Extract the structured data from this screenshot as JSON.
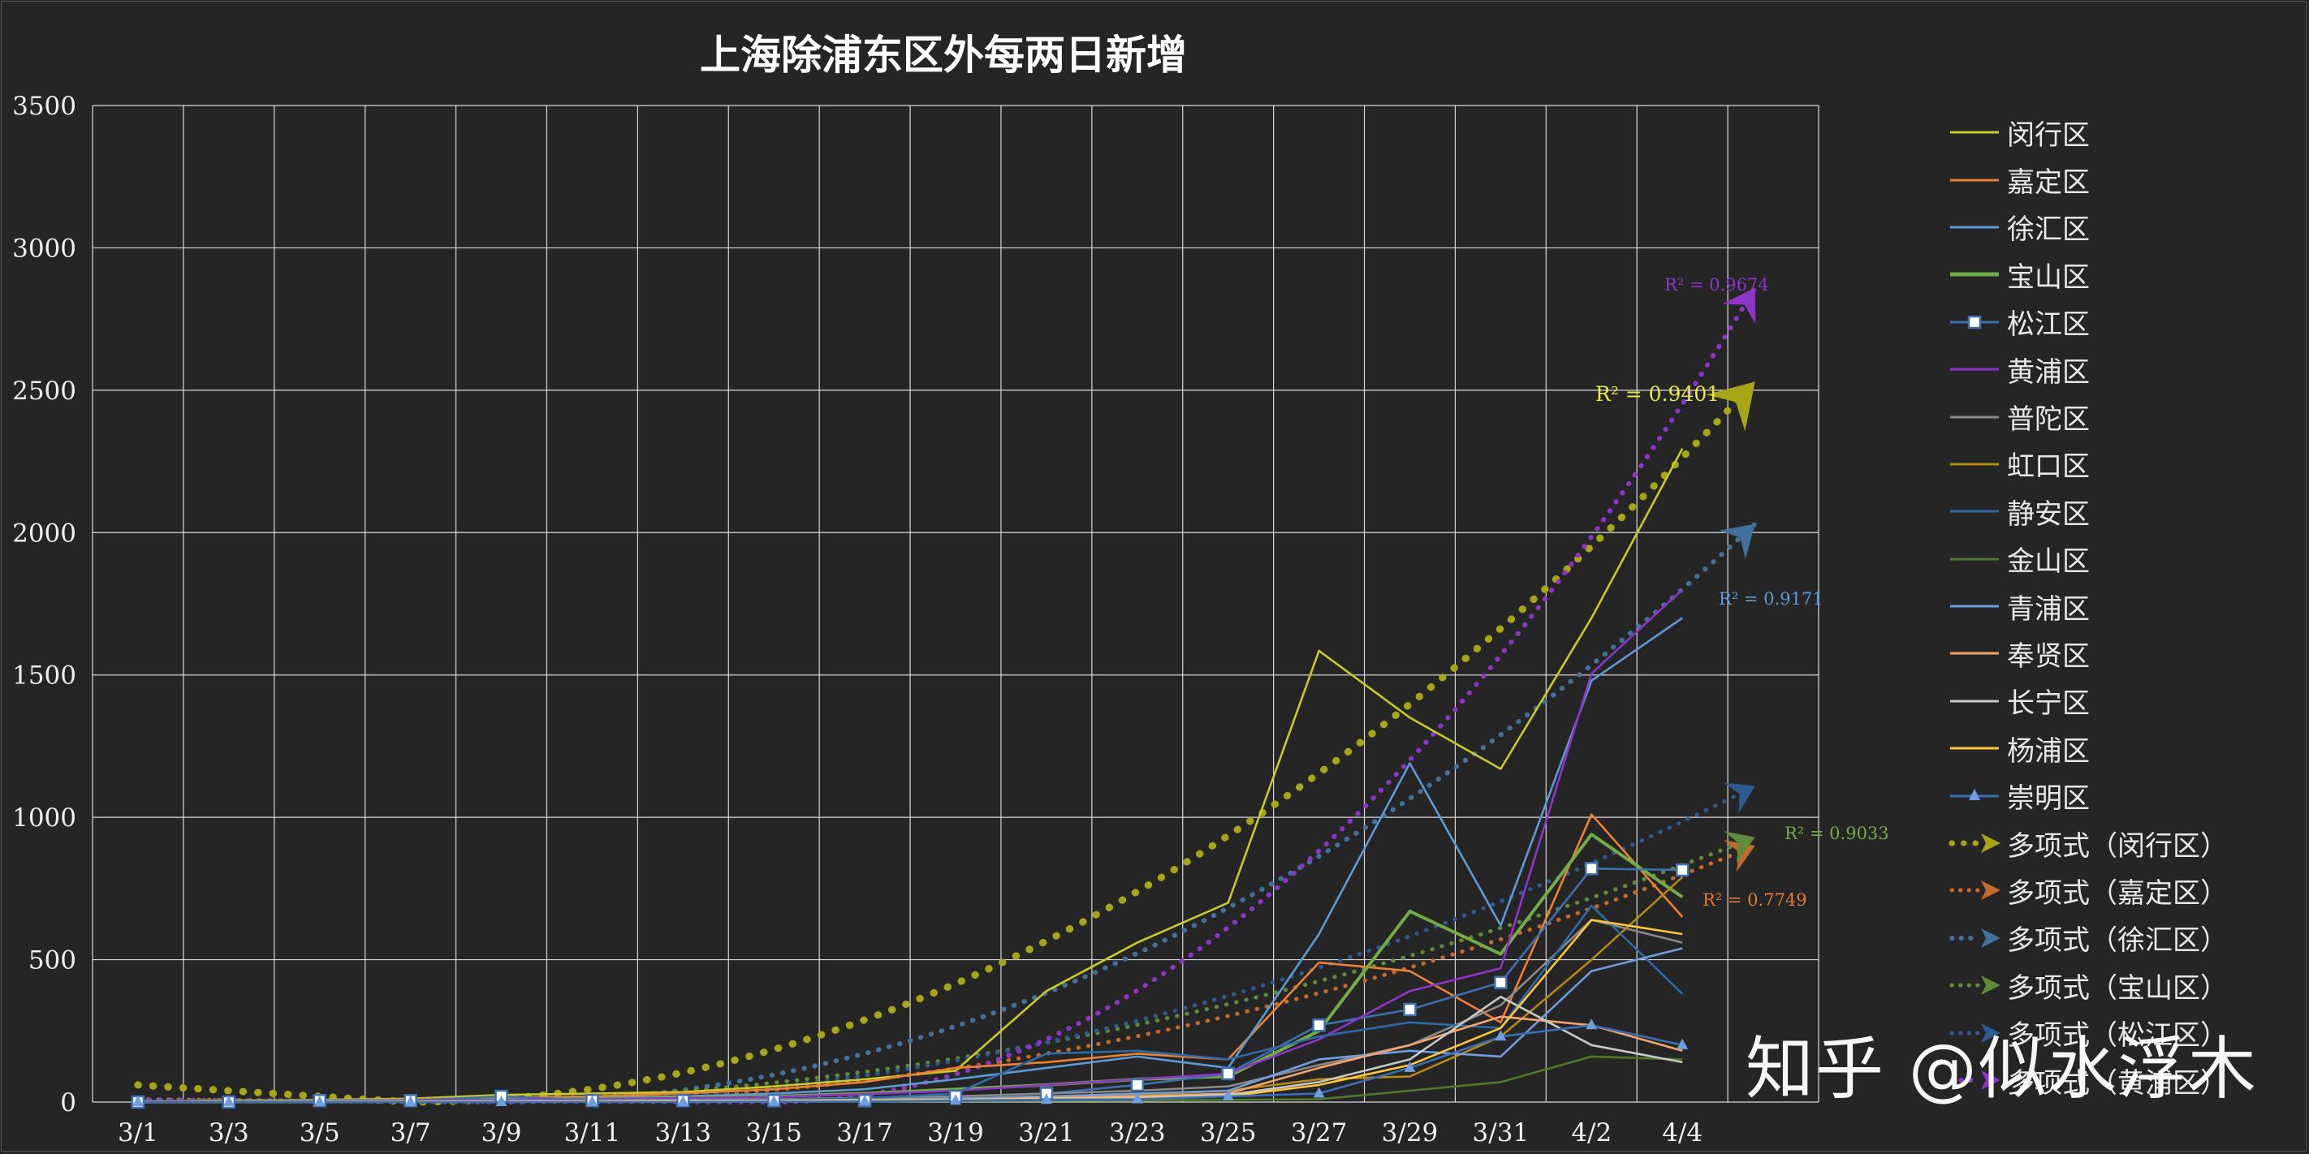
{
  "chart_data": {
    "type": "line",
    "title": "上海除浦东区外每两日新增",
    "categories": [
      "3/1",
      "3/3",
      "3/5",
      "3/7",
      "3/9",
      "3/11",
      "3/13",
      "3/15",
      "3/17",
      "3/19",
      "3/21",
      "3/23",
      "3/25",
      "3/27",
      "3/29",
      "3/31",
      "4/2",
      "4/4"
    ],
    "ylim": [
      0,
      3500
    ],
    "yticks": [
      0,
      500,
      1000,
      1500,
      2000,
      2500,
      3000,
      3500
    ],
    "xlim": [
      -0.5,
      18.5
    ],
    "grid": true,
    "legend_position": "right",
    "series": [
      {
        "name": "闵行区",
        "color": "#c9c92a",
        "values": [
          2,
          5,
          8,
          12,
          25,
          30,
          35,
          55,
          80,
          110,
          390,
          560,
          700,
          1585,
          1350,
          1170,
          1700,
          2295
        ]
      },
      {
        "name": "嘉定区",
        "color": "#ee8033",
        "values": [
          2,
          4,
          6,
          10,
          15,
          20,
          30,
          45,
          70,
          120,
          140,
          170,
          150,
          490,
          460,
          280,
          1010,
          650
        ]
      },
      {
        "name": "徐汇区",
        "color": "#5b9bd5",
        "values": [
          2,
          3,
          5,
          8,
          12,
          15,
          20,
          30,
          45,
          80,
          120,
          160,
          120,
          590,
          1190,
          620,
          1480,
          1700
        ]
      },
      {
        "name": "宝山区",
        "color": "#70ad47",
        "values": [
          1,
          2,
          4,
          6,
          10,
          12,
          16,
          20,
          30,
          45,
          60,
          80,
          90,
          250,
          670,
          520,
          940,
          720
        ]
      },
      {
        "name": "松江区",
        "color": "#3f6fb0",
        "values": [
          0,
          0,
          5,
          5,
          20,
          5,
          5,
          5,
          5,
          20,
          30,
          60,
          100,
          270,
          325,
          420,
          820,
          815
        ],
        "marker": "square"
      },
      {
        "name": "黄浦区",
        "color": "#8f34c9",
        "values": [
          1,
          2,
          3,
          5,
          8,
          10,
          14,
          18,
          28,
          40,
          60,
          80,
          100,
          220,
          390,
          470,
          1505,
          1800
        ]
      },
      {
        "name": "普陀区",
        "color": "#8a8a8a",
        "values": [
          0,
          1,
          2,
          3,
          5,
          6,
          8,
          10,
          15,
          20,
          30,
          40,
          55,
          130,
          200,
          340,
          640,
          560
        ]
      },
      {
        "name": "虹口区",
        "color": "#b58a14",
        "values": [
          0,
          1,
          2,
          2,
          3,
          4,
          5,
          8,
          10,
          12,
          20,
          25,
          40,
          80,
          90,
          230,
          500,
          790
        ]
      },
      {
        "name": "静安区",
        "color": "#2d6aa8",
        "values": [
          0,
          1,
          1,
          2,
          3,
          4,
          6,
          8,
          14,
          30,
          170,
          180,
          150,
          230,
          280,
          260,
          690,
          380
        ]
      },
      {
        "name": "金山区",
        "color": "#4c7a2c",
        "values": [
          0,
          0,
          0,
          1,
          1,
          1,
          2,
          2,
          3,
          4,
          5,
          6,
          8,
          10,
          40,
          70,
          160,
          150
        ]
      },
      {
        "name": "青浦区",
        "color": "#6f9ee0",
        "values": [
          0,
          1,
          1,
          2,
          3,
          4,
          5,
          6,
          8,
          12,
          20,
          30,
          40,
          150,
          180,
          160,
          460,
          540
        ]
      },
      {
        "name": "奉贤区",
        "color": "#f4a36a",
        "values": [
          0,
          0,
          1,
          1,
          2,
          2,
          3,
          4,
          6,
          8,
          15,
          20,
          30,
          120,
          200,
          300,
          270,
          180
        ]
      },
      {
        "name": "长宁区",
        "color": "#c8c8c8",
        "values": [
          0,
          0,
          1,
          1,
          2,
          2,
          3,
          4,
          6,
          8,
          12,
          15,
          25,
          70,
          150,
          370,
          200,
          140
        ]
      },
      {
        "name": "杨浦区",
        "color": "#ffc43a",
        "values": [
          0,
          0,
          0,
          1,
          1,
          2,
          2,
          3,
          5,
          7,
          10,
          12,
          20,
          60,
          130,
          260,
          640,
          590
        ]
      },
      {
        "name": "崇明区",
        "color": "#3b6eb5",
        "values": [
          0,
          0,
          0,
          0,
          0,
          0,
          0,
          1,
          2,
          5,
          8,
          10,
          20,
          30,
          120,
          230,
          270,
          200
        ],
        "marker": "triangle"
      }
    ],
    "trendlines": [
      {
        "name": "多项式（闵行区）",
        "color": "#a6a616",
        "r2": "R² = 0.9401",
        "label_color": "#e8e84a",
        "width": 9,
        "dash": "0.5 18",
        "y0": 60,
        "min_at": 3,
        "y_end": 2530
      },
      {
        "name": "多项式（嘉定区）",
        "color": "#c46a2c",
        "r2": "R² = 0.7749",
        "label_color": "#e07b39",
        "width": 5,
        "dash": "0.5 12",
        "y0": 10,
        "min_at": 4,
        "y_end": 900
      },
      {
        "name": "多项式（徐汇区）",
        "color": "#41719c",
        "r2": "R² = 0.9171",
        "label_color": "#5b9bd5",
        "width": 6,
        "dash": "0.5 13",
        "y0": 8,
        "min_at": 4,
        "y_end": 2030
      },
      {
        "name": "多项式（宝山区）",
        "color": "#5e8c3a",
        "r2": "R² = 0.9033",
        "label_color": "#70ad47",
        "width": 5,
        "dash": "0.5 12",
        "y0": 5,
        "min_at": 3,
        "y_end": 930
      },
      {
        "name": "多项式（松江区）",
        "color": "#2e5a93",
        "r2": "",
        "label_color": "#2e5a93",
        "width": 5,
        "dash": "0.5 12",
        "y0": 4,
        "min_at": 4,
        "y_end": 1110
      },
      {
        "name": "多项式（黄浦区）",
        "color": "#8f34c9",
        "r2": "R² = 0.9674",
        "label_color": "#8f34c9",
        "width": 6,
        "dash": "0.5 13",
        "y0": 6,
        "min_at": 7,
        "y_end": 2860
      }
    ]
  },
  "watermark": "知乎 @似水浮木"
}
